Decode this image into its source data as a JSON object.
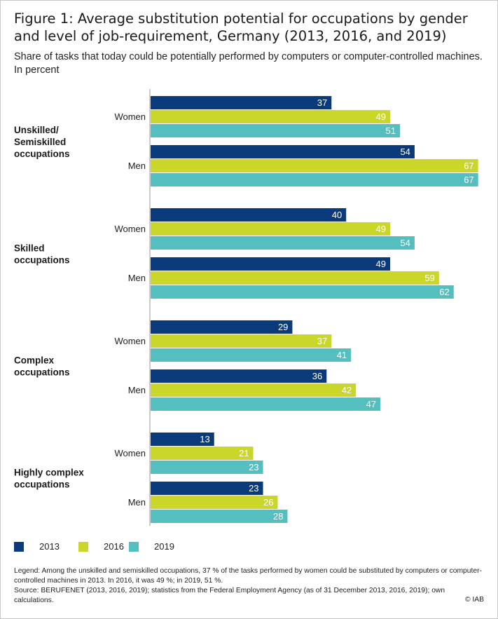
{
  "header": {
    "title": "Figure 1: Average substitution potential for occupations by gender and level of job-requirement, Germany (2013, 2016, and 2019)",
    "subtitle": "Share of tasks that today could be potentially performed by computers or computer-controlled machines. In percent"
  },
  "chart_data": {
    "type": "bar",
    "orientation": "horizontal",
    "groups": [
      {
        "label": "Unskilled/\nSemiskilled\noccupations",
        "subgroups": [
          {
            "label": "Women",
            "values": [
              37,
              49,
              51
            ]
          },
          {
            "label": "Men",
            "values": [
              54,
              67,
              67
            ]
          }
        ]
      },
      {
        "label": "Skilled\noccupations",
        "subgroups": [
          {
            "label": "Women",
            "values": [
              40,
              49,
              54
            ]
          },
          {
            "label": "Men",
            "values": [
              49,
              59,
              62
            ]
          }
        ]
      },
      {
        "label": "Complex\noccupations",
        "subgroups": [
          {
            "label": "Women",
            "values": [
              29,
              37,
              41
            ]
          },
          {
            "label": "Men",
            "values": [
              36,
              42,
              47
            ]
          }
        ]
      },
      {
        "label": "Highly complex\noccupations",
        "subgroups": [
          {
            "label": "Women",
            "values": [
              13,
              21,
              23
            ]
          },
          {
            "label": "Men",
            "values": [
              23,
              26,
              28
            ]
          }
        ]
      }
    ],
    "series": [
      {
        "name": "2013",
        "color": "#0a3a7a",
        "label_color": "#ffffff"
      },
      {
        "name": "2016",
        "color": "#cbd62b",
        "label_color": "#ffffff"
      },
      {
        "name": "2019",
        "color": "#55bfbf",
        "label_color": "#ffffff"
      }
    ],
    "xlim": [
      0,
      68
    ],
    "grid": false,
    "legend_position": "bottom-left"
  },
  "footer": {
    "note": "Legend: Among the unskilled and semiskilled  occupations, 37 % of the tasks performed by women could be substituted by computers or computer-controlled machines in 2013. In 2016, it was 49 %; in 2019, 51 %.",
    "source": "Source: BERUFENET (2013, 2016, 2019); statistics from the Federal Employment Agency (as of 31 December 2013, 2016, 2019); own calculations.",
    "credit": "© IAB"
  }
}
